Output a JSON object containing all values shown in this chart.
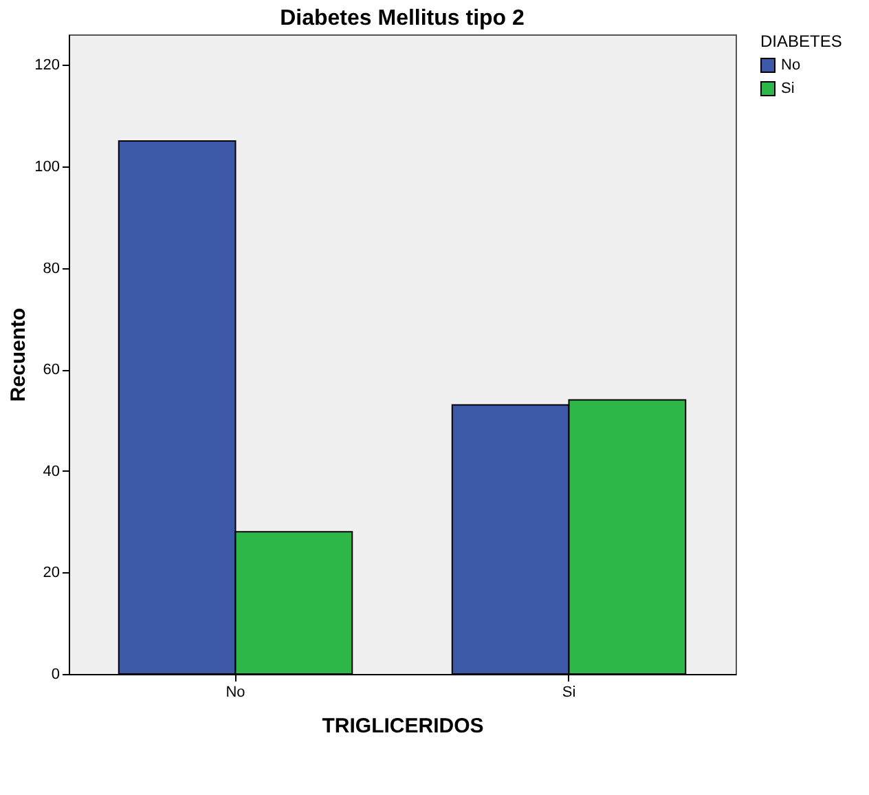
{
  "chart_data": {
    "type": "bar",
    "title": "Diabetes Mellitus tipo 2",
    "xlabel": "TRIGLICERIDOS",
    "ylabel": "Recuento",
    "legend_title": "DIABETES",
    "categories": [
      "No",
      "Si"
    ],
    "series": [
      {
        "name": "No",
        "color": "#3e58a8",
        "values": [
          105,
          53
        ]
      },
      {
        "name": "Si",
        "color": "#2fb84a",
        "values": [
          28,
          54
        ]
      }
    ],
    "ylim": [
      0,
      126
    ],
    "yticks": [
      0,
      20,
      40,
      60,
      80,
      100,
      120
    ],
    "grid": false,
    "legend": "top right"
  }
}
